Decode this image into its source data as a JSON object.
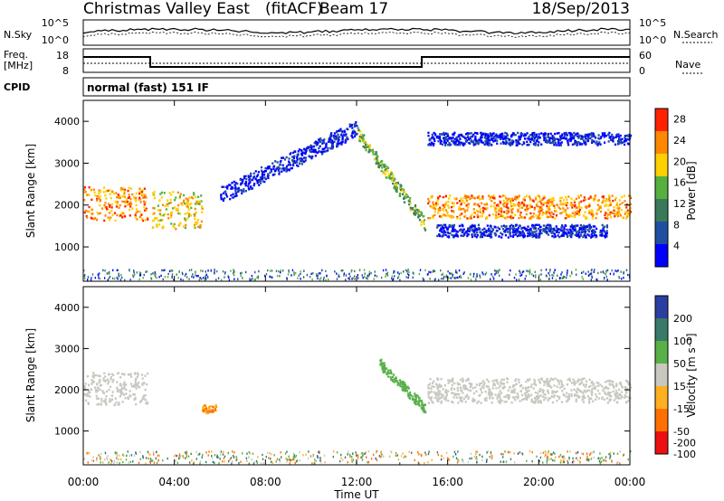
{
  "header": {
    "station": "Christmas Valley East",
    "mode": "(fitACF)",
    "beam": "Beam 17",
    "date": "18/Sep/2013"
  },
  "noise_panel": {
    "left_label": "N.Sky",
    "left_ticks": [
      "10^5",
      "10^0"
    ],
    "right_ticks": [
      "10^5",
      "10^0"
    ],
    "right_label": "N.Search"
  },
  "freq_panel": {
    "left_label_1": "Freq.",
    "left_label_2": "[MHz]",
    "left_ticks": [
      "18",
      "8"
    ],
    "right_ticks": [
      "60",
      "0"
    ],
    "right_label": "Nave"
  },
  "cpid_panel": {
    "label": "CPID",
    "text": "normal (fast) 151 IF"
  },
  "chart_data": [
    {
      "type": "heatmap",
      "title": "",
      "xlabel": "Time UT",
      "ylabel": "Slant Range [km]",
      "x_ticks": [
        "00:00",
        "04:00",
        "08:00",
        "12:00",
        "16:00",
        "20:00",
        "00:00"
      ],
      "y_ticks": [
        "1000",
        "2000",
        "3000",
        "4000"
      ],
      "xlim_hours": [
        0,
        24
      ],
      "ylim_km": [
        180,
        4500
      ],
      "colorbar": {
        "label": "Power [dB]",
        "ticks": [
          "4",
          "8",
          "12",
          "16",
          "20",
          "24",
          "28"
        ],
        "range": [
          0,
          30
        ],
        "colors": [
          "#0000ff",
          "#1f4fa0",
          "#3a7a5a",
          "#55b040",
          "#ffd000",
          "#ff8800",
          "#ff2200"
        ]
      },
      "features": [
        {
          "feature": "main scatter band",
          "time_hours": [
            0,
            2.8
          ],
          "range_km": [
            1600,
            2400
          ],
          "power_db": 28
        },
        {
          "feature": "main scatter band",
          "time_hours": [
            3.0,
            5.2
          ],
          "range_km": [
            1400,
            2300
          ],
          "power_db": 24
        },
        {
          "feature": "rising weak echo arc",
          "time_hours": [
            6,
            12
          ],
          "range_km": [
            2200,
            3800
          ],
          "power_db": 8
        },
        {
          "feature": "descending arc",
          "time_hours": [
            12,
            15
          ],
          "range_km": [
            1500,
            3700
          ],
          "power_db": 20
        },
        {
          "feature": "main scatter band",
          "time_hours": [
            15.1,
            24
          ],
          "range_km": [
            1650,
            2200
          ],
          "power_db": 28
        },
        {
          "feature": "upper weak band",
          "time_hours": [
            15.1,
            24
          ],
          "range_km": [
            3400,
            3700
          ],
          "power_db": 8
        },
        {
          "feature": "lower weak band",
          "time_hours": [
            15.5,
            23
          ],
          "range_km": [
            1200,
            1500
          ],
          "power_db": 8
        }
      ]
    },
    {
      "type": "heatmap",
      "title": "",
      "xlabel": "Time UT",
      "ylabel": "Slant Range [km]",
      "x_ticks": [
        "00:00",
        "04:00",
        "08:00",
        "12:00",
        "16:00",
        "20:00",
        "00:00"
      ],
      "y_ticks": [
        "1000",
        "2000",
        "3000",
        "4000"
      ],
      "xlim_hours": [
        0,
        24
      ],
      "ylim_km": [
        180,
        4500
      ],
      "colorbar": {
        "label": "Velocity [m s⁻¹]",
        "ticks": [
          "200",
          "100",
          "50",
          "15",
          "-15",
          "-50",
          "-100",
          "-200"
        ],
        "colors": [
          "#2a3fa0",
          "#3a7a6a",
          "#58b048",
          "#c8c8c0",
          "#ffb020",
          "#ff7000",
          "#ee1010"
        ]
      },
      "features": [
        {
          "feature": "ground scatter band (near zero velocity)",
          "time_hours": [
            0,
            2.8
          ],
          "range_km": [
            1600,
            2400
          ],
          "velocity_ms": 0
        },
        {
          "feature": "ground scatter band (near zero velocity)",
          "time_hours": [
            15.1,
            24
          ],
          "range_km": [
            1650,
            2250
          ],
          "velocity_ms": 0
        },
        {
          "feature": "positive velocity arc",
          "time_hours": [
            13,
            15
          ],
          "range_km": [
            1500,
            2600
          ],
          "velocity_ms": 50
        },
        {
          "feature": "negative velocity patch",
          "time_hours": [
            5.2,
            5.8
          ],
          "range_km": [
            1400,
            1600
          ],
          "velocity_ms": -50
        }
      ]
    }
  ]
}
